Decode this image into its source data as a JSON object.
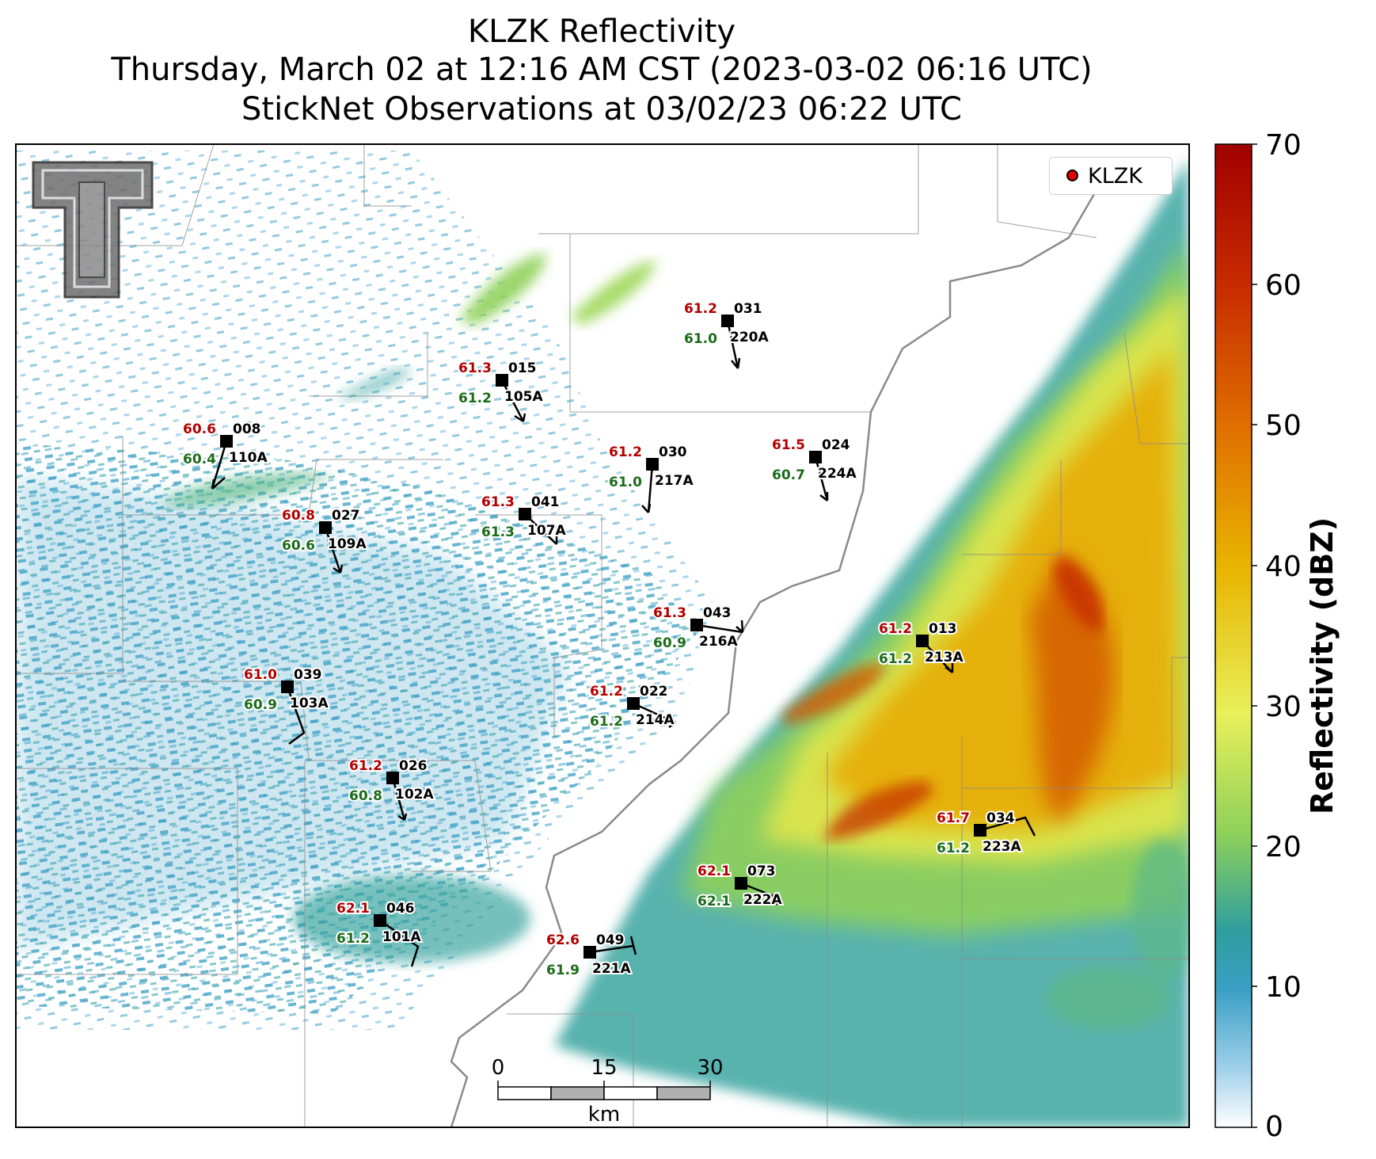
{
  "title": {
    "line1": "KLZK Reflectivity",
    "line2": "Thursday, March 02 at 12:16 AM CST (2023-03-02 06:16 UTC)",
    "line3": "StickNet Observations at 03/02/23 06:22 UTC"
  },
  "legend": {
    "label": "KLZK",
    "marker_color": "#e00000"
  },
  "colorbar": {
    "label": "Reflectivity (dBZ)",
    "ticks": [
      "0",
      "10",
      "20",
      "30",
      "40",
      "50",
      "60",
      "70"
    ],
    "colors": [
      "#ffffff",
      "#3a9fc4",
      "#2f9e9e",
      "#8fd15a",
      "#e8f05a",
      "#e8b400",
      "#e07000",
      "#c62a00",
      "#a00000"
    ]
  },
  "scale_bar": {
    "unit": "km",
    "ticks": [
      "0",
      "15",
      "30"
    ]
  },
  "logo": {
    "name": "Texas Tech Double T"
  },
  "stations": [
    {
      "id": "110A",
      "num": "008",
      "temp": "60.6",
      "dew": "60.4"
    },
    {
      "id": "105A",
      "num": "015",
      "temp": "61.3",
      "dew": "61.2"
    },
    {
      "id": "220A",
      "num": "031",
      "temp": "61.2",
      "dew": "61.0"
    },
    {
      "id": "109A",
      "num": "027",
      "temp": "60.8",
      "dew": "60.6"
    },
    {
      "id": "107A",
      "num": "041",
      "temp": "61.3",
      "dew": "61.3"
    },
    {
      "id": "217A",
      "num": "030",
      "temp": "61.2",
      "dew": "61.0"
    },
    {
      "id": "224A",
      "num": "024",
      "temp": "61.5",
      "dew": "60.7"
    },
    {
      "id": "216A",
      "num": "043",
      "temp": "61.3",
      "dew": "60.9"
    },
    {
      "id": "213A",
      "num": "013",
      "temp": "61.2",
      "dew": "61.2"
    },
    {
      "id": "103A",
      "num": "039",
      "temp": "61.0",
      "dew": "60.9"
    },
    {
      "id": "214A",
      "num": "022",
      "temp": "61.2",
      "dew": "61.2"
    },
    {
      "id": "102A",
      "num": "026",
      "temp": "61.2",
      "dew": "60.8"
    },
    {
      "id": "223A",
      "num": "034",
      "temp": "61.7",
      "dew": "61.2"
    },
    {
      "id": "222A",
      "num": "073",
      "temp": "62.1",
      "dew": "62.1"
    },
    {
      "id": "101A",
      "num": "046",
      "temp": "62.1",
      "dew": "61.2"
    },
    {
      "id": "221A",
      "num": "049",
      "temp": "62.6",
      "dew": "61.9"
    }
  ]
}
